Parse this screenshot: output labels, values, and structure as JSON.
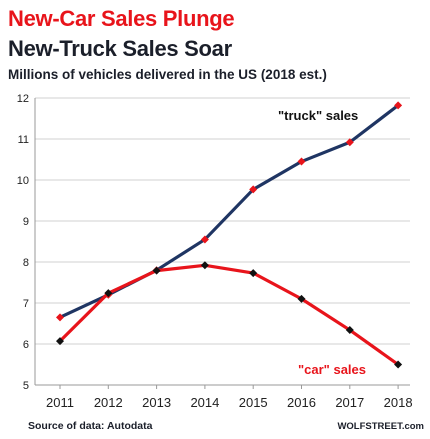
{
  "title": "New-Car Sales Plunge",
  "subtitle": "New-Truck Sales Soar",
  "description": "Millions of vehicles delivered in the US (2018 est.)",
  "source": "Source of data: Autodata",
  "brand": "WOLFSTREET.com",
  "colors": {
    "truck_line": "#1f3563",
    "truck_marker": "#e8141b",
    "car_line": "#e8141b",
    "car_marker": "#111111",
    "title_red": "#e8141b",
    "text_dark": "#1b1f2a",
    "grid": "#d0d0d0"
  },
  "chart_data": {
    "type": "line",
    "categories": [
      "2011",
      "2012",
      "2013",
      "2014",
      "2015",
      "2016",
      "2017",
      "2018"
    ],
    "series": [
      {
        "name": "\"truck\" sales",
        "values": [
          6.65,
          7.2,
          7.8,
          8.55,
          9.77,
          10.45,
          10.92,
          11.82
        ]
      },
      {
        "name": "\"car\" sales",
        "values": [
          6.07,
          7.24,
          7.79,
          7.92,
          7.73,
          7.1,
          6.34,
          5.5
        ]
      }
    ],
    "yticks": [
      5,
      6,
      7,
      8,
      9,
      10,
      11,
      12
    ],
    "ylim": [
      5,
      12
    ],
    "grid": "horizontal",
    "legend": "inline labels"
  }
}
